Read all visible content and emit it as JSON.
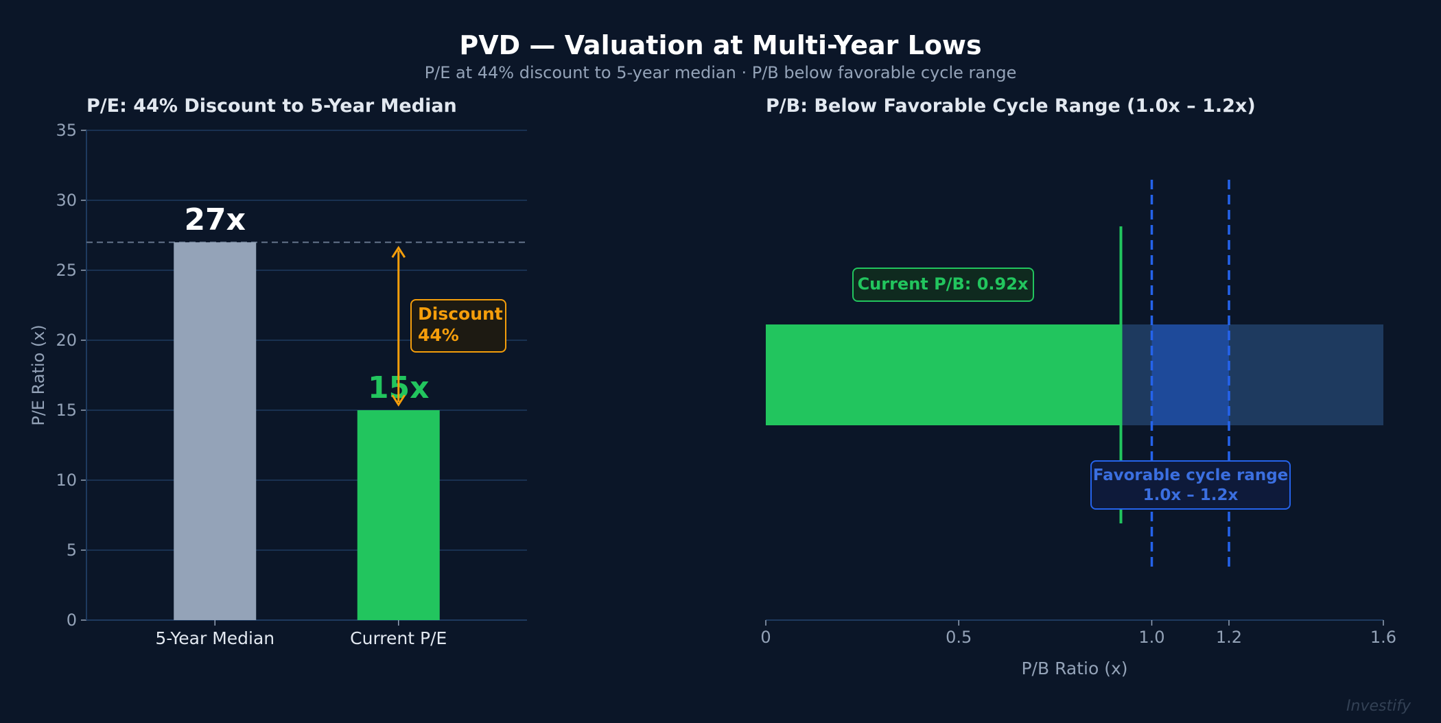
{
  "title": "PVD — Valuation at Multi-Year Lows",
  "subtitle": "P/E at 44% discount to 5-year median · P/B below favorable cycle range",
  "watermark": "Investify",
  "colors": {
    "background": "#0b1628",
    "green": "#22c55e",
    "gray_bar": "#94a3b8",
    "orange": "#f59e0b",
    "blue": "#2563eb",
    "blue_text": "#3b6fe0",
    "grid": "#1e3a5f"
  },
  "chart_data": [
    {
      "type": "bar",
      "title": "P/E: 44% Discount to 5-Year Median",
      "xlabel": "",
      "ylabel": "P/E Ratio (x)",
      "ylim": [
        0,
        35
      ],
      "yticks": [
        0,
        5,
        10,
        15,
        20,
        25,
        30,
        35
      ],
      "grid": true,
      "categories": [
        "5-Year Median",
        "Current P/E"
      ],
      "values": [
        27,
        15
      ],
      "data_labels": [
        "27x",
        "15x"
      ],
      "reference_line": 27,
      "annotation": {
        "line1": "Discount",
        "line2": "44%"
      }
    },
    {
      "type": "bar",
      "orientation": "horizontal",
      "title": "P/B: Below Favorable Cycle Range (1.0x – 1.2x)",
      "xlabel": "P/B Ratio (x)",
      "xlim": [
        0,
        1.6
      ],
      "xticks": [
        0,
        0.5,
        1.0,
        1.2,
        1.6
      ],
      "xtick_labels": [
        "0",
        "0.5",
        "1.0",
        "1.2",
        "1.6"
      ],
      "value": 0.92,
      "range": [
        1.0,
        1.2
      ],
      "current_label": "Current P/B: 0.92x",
      "range_label": {
        "line1": "Favorable cycle range",
        "line2": "1.0x – 1.2x"
      }
    }
  ]
}
